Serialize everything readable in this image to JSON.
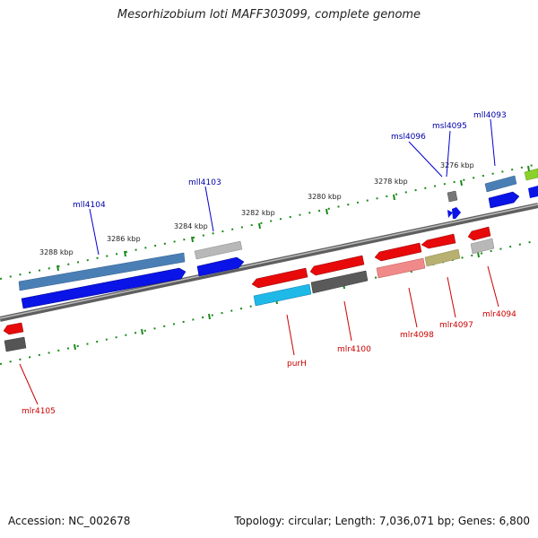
{
  "header": {
    "title": "Mesorhizobium loti MAFF303099, complete genome"
  },
  "footer": {
    "accession": "Accession: NC_002678",
    "summary": "Topology: circular; Length: 7,036,071 bp; Genes: 6,800"
  },
  "scale": {
    "unit": "kbp",
    "tick_labels": [
      "3288 kbp",
      "3286 kbp",
      "3284 kbp",
      "3282 kbp",
      "3280 kbp",
      "3278 kbp",
      "3276 kbp"
    ]
  },
  "colors": {
    "backbone": "#7a7a7a",
    "ticks": "#1a8a1a",
    "reverse_label": "#0000aa",
    "forward_label": "#cc0000"
  },
  "genes": {
    "reverse_strand": [
      {
        "name": "mll4104"
      },
      {
        "name": "mll4103"
      },
      {
        "name": "msl4096"
      },
      {
        "name": "msl4095"
      },
      {
        "name": "mll4093"
      }
    ],
    "forward_strand": [
      {
        "name": "mlr4105"
      },
      {
        "name": "purH"
      },
      {
        "name": "mlr4100"
      },
      {
        "name": "mlr4098"
      },
      {
        "name": "mlr4097"
      },
      {
        "name": "mlr4094"
      }
    ]
  }
}
